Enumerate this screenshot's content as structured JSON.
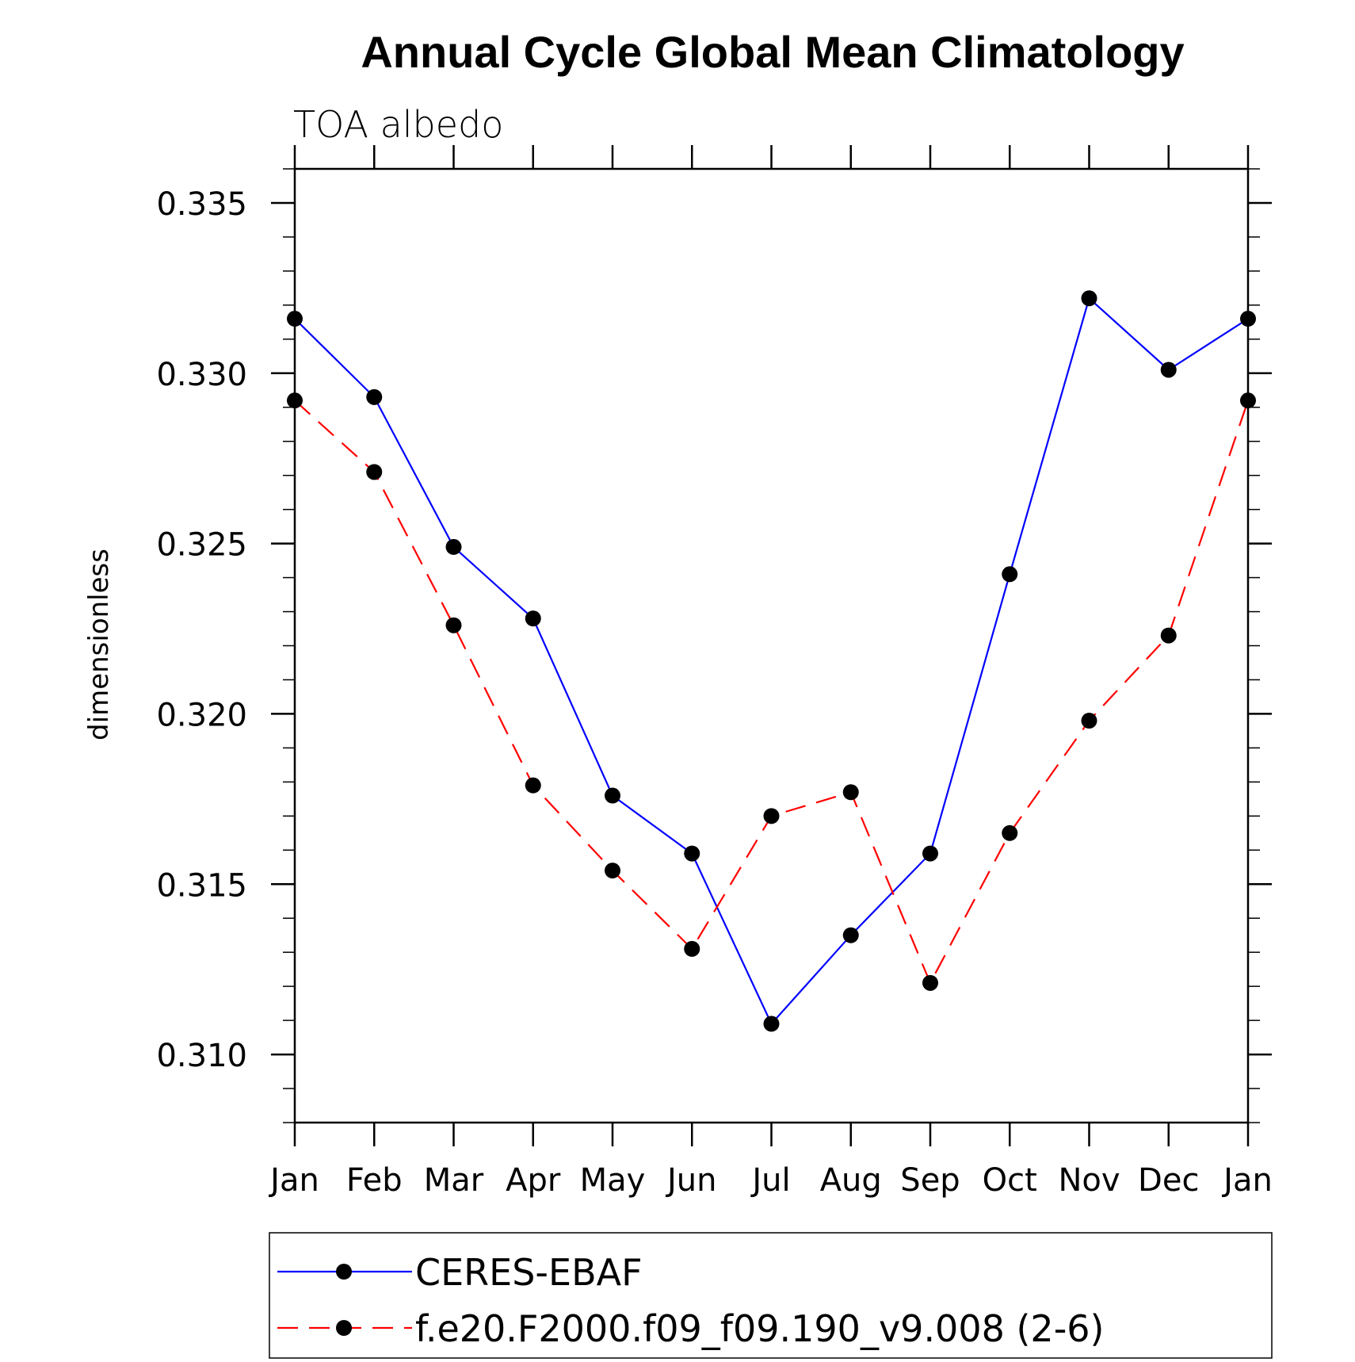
{
  "chart_data": {
    "type": "line",
    "title": "Annual Cycle Global Mean Climatology",
    "subtitle": "TOA albedo",
    "ylabel": "dimensionless",
    "xlabel": "",
    "categories": [
      "Jan",
      "Feb",
      "Mar",
      "Apr",
      "May",
      "Jun",
      "Jul",
      "Aug",
      "Sep",
      "Oct",
      "Nov",
      "Dec",
      "Jan"
    ],
    "ylim": [
      0.308,
      0.336
    ],
    "yticks": [
      "0.310",
      "0.315",
      "0.320",
      "0.325",
      "0.330",
      "0.335"
    ],
    "series": [
      {
        "name": "CERES-EBAF",
        "color": "#0000ff",
        "dashed": false,
        "values": [
          0.3316,
          0.3293,
          0.3249,
          0.3228,
          0.3176,
          0.3159,
          0.3109,
          0.3135,
          0.3159,
          0.3241,
          0.3322,
          0.3301,
          0.3316
        ]
      },
      {
        "name": "f.e20.F2000.f09_f09.190_v9.008 (2-6)",
        "color": "#ff0000",
        "dashed": true,
        "values": [
          0.3292,
          0.3271,
          0.3226,
          0.3179,
          0.3154,
          0.3131,
          0.317,
          0.3177,
          0.3121,
          0.3165,
          0.3198,
          0.3223,
          0.3292
        ]
      }
    ]
  }
}
